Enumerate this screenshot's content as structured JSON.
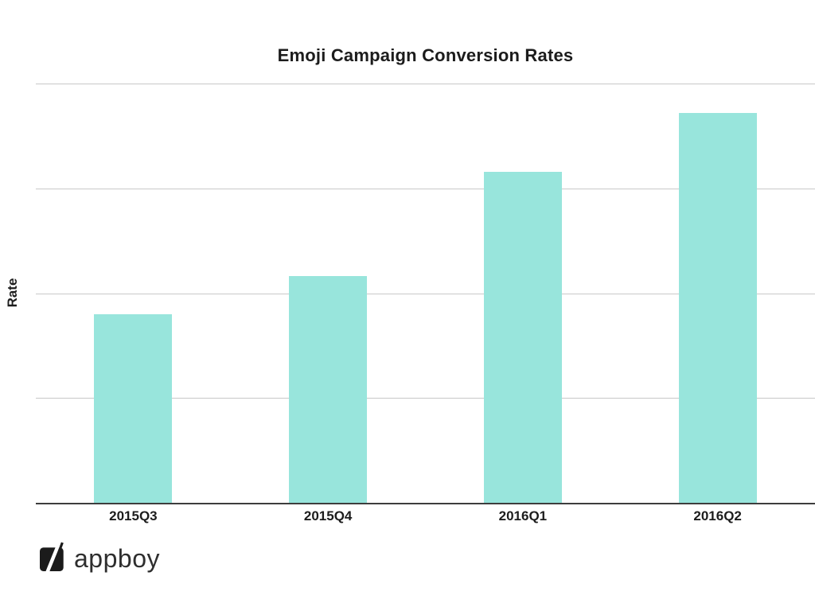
{
  "logo": {
    "text": "appboy",
    "mark_icon": "slash-square-icon",
    "mark_color": "#1b1b1b",
    "text_color": "#2e2e2e"
  },
  "chart_data": {
    "type": "bar",
    "title": "Emoji Campaign Conversion Rates",
    "categories": [
      "2015Q3",
      "2015Q4",
      "2016Q1",
      "2016Q2"
    ],
    "values": [
      0.45,
      0.54,
      0.79,
      0.93
    ],
    "xlabel": "",
    "ylabel": "Rate",
    "ylim": [
      0,
      1
    ],
    "y_tick_labels": [],
    "y_gridlines": [
      0.25,
      0.5,
      0.75,
      1.0
    ],
    "grid": true,
    "legend": "none",
    "bar_color": "#98E5DC",
    "gridline_color": "#c8c8c8",
    "axis_color": "#3d3d3d",
    "label_color": "#1c1c1c"
  }
}
